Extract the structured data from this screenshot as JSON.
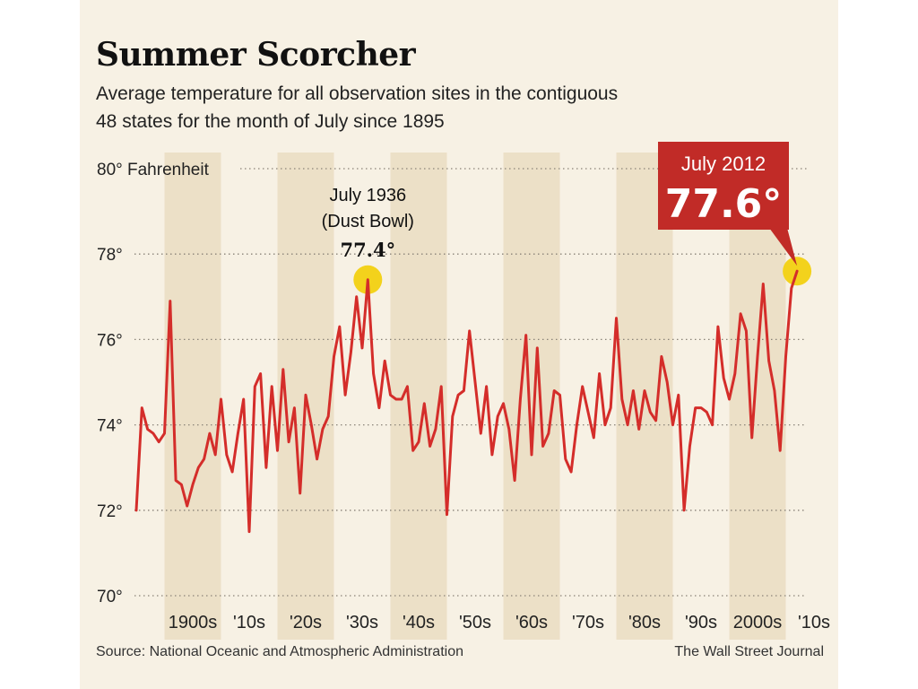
{
  "title": "Summer Scorcher",
  "subtitle_line1": "Average temperature for all observation sites in the contiguous",
  "subtitle_line2": "48 states for the month of July since 1895",
  "source": "Source: National Oceanic and Atmospheric Administration",
  "credit": "The Wall Street Journal",
  "colors": {
    "line": "#d42d2a",
    "highlight": "#f3d21c",
    "decade_band": "#ece0c7",
    "callout_bg": "#c12b27",
    "background": "#f7f1e4"
  },
  "chart_data": {
    "type": "line",
    "ylabel": "Fahrenheit",
    "ylim": [
      70,
      80
    ],
    "y_ticks": [
      70,
      72,
      74,
      76,
      78,
      80
    ],
    "y_tick_labels": [
      "70°",
      "72°",
      "74°",
      "76°",
      "78°",
      "80° Fahrenheit"
    ],
    "x_tick_values": [
      1900,
      1910,
      1920,
      1930,
      1940,
      1950,
      1960,
      1970,
      1980,
      1990,
      2000,
      2010
    ],
    "x_tick_labels": [
      "1900s",
      "'10s",
      "'20s",
      "'30s",
      "'40s",
      "'50s",
      "'60s",
      "'70s",
      "'80s",
      "'90s",
      "2000s",
      "'10s"
    ],
    "xlim": [
      1895,
      2012
    ],
    "grid": "horizontal dotted",
    "shaded_decades": [
      1900,
      1920,
      1940,
      1960,
      1980,
      2000
    ],
    "series": [
      {
        "x": [
          1895,
          1896,
          1897,
          1898,
          1899,
          1900,
          1901,
          1902,
          1903,
          1904,
          1905,
          1906,
          1907,
          1908,
          1909,
          1910,
          1911,
          1912,
          1913,
          1914,
          1915,
          1916,
          1917,
          1918,
          1919,
          1920,
          1921,
          1922,
          1923,
          1924,
          1925,
          1926,
          1927,
          1928,
          1929,
          1930,
          1931,
          1932,
          1933,
          1934,
          1935,
          1936,
          1937,
          1938,
          1939,
          1940,
          1941,
          1942,
          1943,
          1944,
          1945,
          1946,
          1947,
          1948,
          1949,
          1950,
          1951,
          1952,
          1953,
          1954,
          1955,
          1956,
          1957,
          1958,
          1959,
          1960,
          1961,
          1962,
          1963,
          1964,
          1965,
          1966,
          1967,
          1968,
          1969,
          1970,
          1971,
          1972,
          1973,
          1974,
          1975,
          1976,
          1977,
          1978,
          1979,
          1980,
          1981,
          1982,
          1983,
          1984,
          1985,
          1986,
          1987,
          1988,
          1989,
          1990,
          1991,
          1992,
          1993,
          1994,
          1995,
          1996,
          1997,
          1998,
          1999,
          2000,
          2001,
          2002,
          2003,
          2004,
          2005,
          2006,
          2007,
          2008,
          2009,
          2010,
          2011,
          2012
        ],
        "y": [
          72.0,
          74.4,
          73.9,
          73.8,
          73.6,
          73.8,
          76.9,
          72.7,
          72.6,
          72.1,
          72.6,
          73.0,
          73.2,
          73.8,
          73.3,
          74.6,
          73.3,
          72.9,
          73.8,
          74.6,
          71.5,
          74.9,
          75.2,
          73.0,
          74.9,
          73.4,
          75.3,
          73.6,
          74.4,
          72.4,
          74.7,
          74.0,
          73.2,
          73.9,
          74.2,
          75.6,
          76.3,
          74.7,
          75.7,
          77.0,
          75.8,
          77.4,
          75.2,
          74.4,
          75.5,
          74.7,
          74.6,
          74.6,
          74.9,
          73.4,
          73.6,
          74.5,
          73.5,
          73.9,
          74.9,
          71.9,
          74.2,
          74.7,
          74.8,
          76.2,
          75.0,
          73.8,
          74.9,
          73.3,
          74.2,
          74.5,
          73.9,
          72.7,
          74.6,
          76.1,
          73.3,
          75.8,
          73.5,
          73.8,
          74.8,
          74.7,
          73.2,
          72.9,
          74.0,
          74.9,
          74.3,
          73.7,
          75.2,
          74.0,
          74.4,
          76.5,
          74.6,
          74.0,
          74.8,
          73.9,
          74.8,
          74.3,
          74.1,
          75.6,
          75.0,
          74.0,
          74.7,
          72.0,
          73.5,
          74.4,
          74.4,
          74.3,
          74.0,
          76.3,
          75.1,
          74.6,
          75.2,
          76.6,
          76.2,
          73.7,
          75.6,
          77.3,
          75.5,
          74.8,
          73.4,
          75.6,
          77.2,
          77.6
        ]
      }
    ],
    "annotations": [
      {
        "line1": "July 1936",
        "line2": "(Dust Bowl)",
        "value_label": "77.4°",
        "x": 1936,
        "y": 77.4
      },
      {
        "line1": "July 2012",
        "value_label": "77.6°",
        "x": 2012,
        "y": 77.6
      }
    ]
  }
}
